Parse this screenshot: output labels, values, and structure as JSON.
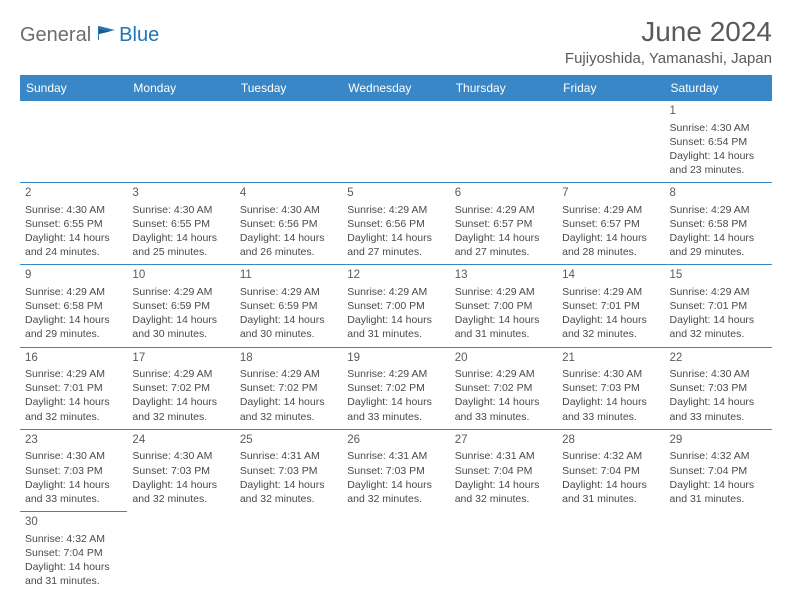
{
  "brand": {
    "part1": "General",
    "part2": "Blue"
  },
  "title": "June 2024",
  "location": "Fujiyoshida, Yamanashi, Japan",
  "colors": {
    "header_bg": "#3a87c8",
    "header_fg": "#ffffff",
    "border": "#3a87c8",
    "text": "#4a4a4a",
    "title": "#5a5a5a",
    "brand_blue": "#2176b8"
  },
  "weekdays": [
    "Sunday",
    "Monday",
    "Tuesday",
    "Wednesday",
    "Thursday",
    "Friday",
    "Saturday"
  ],
  "weeks": [
    [
      null,
      null,
      null,
      null,
      null,
      null,
      {
        "n": "1",
        "sr": "4:30 AM",
        "ss": "6:54 PM",
        "dl": "14 hours and 23 minutes."
      }
    ],
    [
      {
        "n": "2",
        "sr": "4:30 AM",
        "ss": "6:55 PM",
        "dl": "14 hours and 24 minutes."
      },
      {
        "n": "3",
        "sr": "4:30 AM",
        "ss": "6:55 PM",
        "dl": "14 hours and 25 minutes."
      },
      {
        "n": "4",
        "sr": "4:30 AM",
        "ss": "6:56 PM",
        "dl": "14 hours and 26 minutes."
      },
      {
        "n": "5",
        "sr": "4:29 AM",
        "ss": "6:56 PM",
        "dl": "14 hours and 27 minutes."
      },
      {
        "n": "6",
        "sr": "4:29 AM",
        "ss": "6:57 PM",
        "dl": "14 hours and 27 minutes."
      },
      {
        "n": "7",
        "sr": "4:29 AM",
        "ss": "6:57 PM",
        "dl": "14 hours and 28 minutes."
      },
      {
        "n": "8",
        "sr": "4:29 AM",
        "ss": "6:58 PM",
        "dl": "14 hours and 29 minutes."
      }
    ],
    [
      {
        "n": "9",
        "sr": "4:29 AM",
        "ss": "6:58 PM",
        "dl": "14 hours and 29 minutes."
      },
      {
        "n": "10",
        "sr": "4:29 AM",
        "ss": "6:59 PM",
        "dl": "14 hours and 30 minutes."
      },
      {
        "n": "11",
        "sr": "4:29 AM",
        "ss": "6:59 PM",
        "dl": "14 hours and 30 minutes."
      },
      {
        "n": "12",
        "sr": "4:29 AM",
        "ss": "7:00 PM",
        "dl": "14 hours and 31 minutes."
      },
      {
        "n": "13",
        "sr": "4:29 AM",
        "ss": "7:00 PM",
        "dl": "14 hours and 31 minutes."
      },
      {
        "n": "14",
        "sr": "4:29 AM",
        "ss": "7:01 PM",
        "dl": "14 hours and 32 minutes."
      },
      {
        "n": "15",
        "sr": "4:29 AM",
        "ss": "7:01 PM",
        "dl": "14 hours and 32 minutes."
      }
    ],
    [
      {
        "n": "16",
        "sr": "4:29 AM",
        "ss": "7:01 PM",
        "dl": "14 hours and 32 minutes."
      },
      {
        "n": "17",
        "sr": "4:29 AM",
        "ss": "7:02 PM",
        "dl": "14 hours and 32 minutes."
      },
      {
        "n": "18",
        "sr": "4:29 AM",
        "ss": "7:02 PM",
        "dl": "14 hours and 32 minutes."
      },
      {
        "n": "19",
        "sr": "4:29 AM",
        "ss": "7:02 PM",
        "dl": "14 hours and 33 minutes."
      },
      {
        "n": "20",
        "sr": "4:29 AM",
        "ss": "7:02 PM",
        "dl": "14 hours and 33 minutes."
      },
      {
        "n": "21",
        "sr": "4:30 AM",
        "ss": "7:03 PM",
        "dl": "14 hours and 33 minutes."
      },
      {
        "n": "22",
        "sr": "4:30 AM",
        "ss": "7:03 PM",
        "dl": "14 hours and 33 minutes."
      }
    ],
    [
      {
        "n": "23",
        "sr": "4:30 AM",
        "ss": "7:03 PM",
        "dl": "14 hours and 33 minutes."
      },
      {
        "n": "24",
        "sr": "4:30 AM",
        "ss": "7:03 PM",
        "dl": "14 hours and 32 minutes."
      },
      {
        "n": "25",
        "sr": "4:31 AM",
        "ss": "7:03 PM",
        "dl": "14 hours and 32 minutes."
      },
      {
        "n": "26",
        "sr": "4:31 AM",
        "ss": "7:03 PM",
        "dl": "14 hours and 32 minutes."
      },
      {
        "n": "27",
        "sr": "4:31 AM",
        "ss": "7:04 PM",
        "dl": "14 hours and 32 minutes."
      },
      {
        "n": "28",
        "sr": "4:32 AM",
        "ss": "7:04 PM",
        "dl": "14 hours and 31 minutes."
      },
      {
        "n": "29",
        "sr": "4:32 AM",
        "ss": "7:04 PM",
        "dl": "14 hours and 31 minutes."
      }
    ],
    [
      {
        "n": "30",
        "sr": "4:32 AM",
        "ss": "7:04 PM",
        "dl": "14 hours and 31 minutes."
      },
      null,
      null,
      null,
      null,
      null,
      null
    ]
  ],
  "labels": {
    "sunrise": "Sunrise:",
    "sunset": "Sunset:",
    "daylight": "Daylight:"
  }
}
